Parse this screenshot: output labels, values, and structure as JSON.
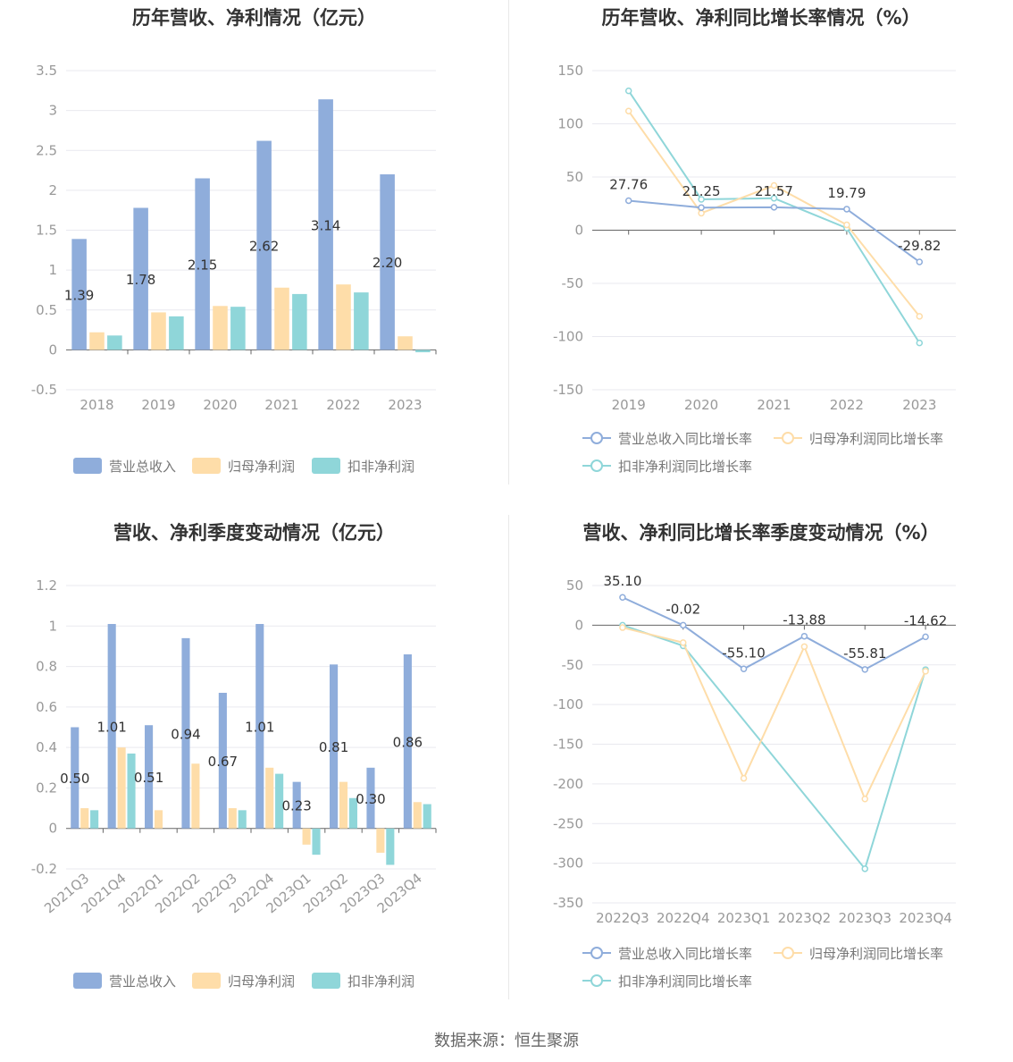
{
  "footer": {
    "source": "数据来源：恒生聚源"
  },
  "colors": {
    "revenue": "#8faddb",
    "parent_profit": "#fedda9",
    "deducted_profit": "#8fd6d9",
    "grid": "#e9e9ef",
    "axis": "#666666"
  },
  "chart_data": [
    {
      "id": "annual_bar",
      "type": "bar",
      "title": "历年营收、净利情况（亿元）",
      "categories": [
        "2018",
        "2019",
        "2020",
        "2021",
        "2022",
        "2023"
      ],
      "series": [
        {
          "name": "营业总收入",
          "color": "#8faddb",
          "values": [
            1.39,
            1.78,
            2.15,
            2.62,
            3.14,
            2.2
          ],
          "labels": [
            "1.39",
            "1.78",
            "2.15",
            "2.62",
            "3.14",
            "2.20"
          ]
        },
        {
          "name": "归母净利润",
          "color": "#fedda9",
          "values": [
            0.22,
            0.47,
            0.55,
            0.78,
            0.82,
            0.17
          ]
        },
        {
          "name": "扣非净利润",
          "color": "#8fd6d9",
          "values": [
            0.18,
            0.42,
            0.54,
            0.7,
            0.72,
            -0.03
          ]
        }
      ],
      "ylim": [
        -0.5,
        3.5
      ],
      "yticks": [
        "-0.5",
        "0",
        "0.5",
        "1",
        "1.5",
        "2",
        "2.5",
        "3",
        "3.5"
      ],
      "legend": "bottom"
    },
    {
      "id": "annual_line",
      "type": "line",
      "title": "历年营收、净利同比增长率情况（%）",
      "categories": [
        "2019",
        "2020",
        "2021",
        "2022",
        "2023"
      ],
      "series": [
        {
          "name": "营业总收入同比增长率",
          "color": "#8faddb",
          "values": [
            27.76,
            21.25,
            21.57,
            19.79,
            -29.82
          ],
          "labels": [
            "27.76",
            "21.25",
            "21.57",
            "19.79",
            "-29.82"
          ]
        },
        {
          "name": "归母净利润同比增长率",
          "color": "#fedda9",
          "values": [
            112,
            16,
            42,
            5,
            -81
          ]
        },
        {
          "name": "扣非净利润同比增长率",
          "color": "#8fd6d9",
          "values": [
            131,
            29,
            30,
            2,
            -106
          ]
        }
      ],
      "ylim": [
        -150,
        150
      ],
      "yticks": [
        "-150",
        "-100",
        "-50",
        "0",
        "50",
        "100",
        "150"
      ],
      "legend": "bottom"
    },
    {
      "id": "quarter_bar",
      "type": "bar",
      "title": "营收、净利季度变动情况（亿元）",
      "categories": [
        "2021Q3",
        "2021Q4",
        "2022Q1",
        "2022Q2",
        "2022Q3",
        "2022Q4",
        "2023Q1",
        "2023Q2",
        "2023Q3",
        "2023Q4"
      ],
      "series": [
        {
          "name": "营业总收入",
          "color": "#8faddb",
          "values": [
            0.5,
            1.01,
            0.51,
            0.94,
            0.67,
            1.01,
            0.23,
            0.81,
            0.3,
            0.86
          ],
          "labels": [
            "0.50",
            "1.01",
            "0.51",
            "0.94",
            "0.67",
            "1.01",
            "0.23",
            "0.81",
            "0.30",
            "0.86"
          ]
        },
        {
          "name": "归母净利润",
          "color": "#fedda9",
          "values": [
            0.1,
            0.4,
            0.09,
            0.32,
            0.1,
            0.3,
            -0.08,
            0.23,
            -0.12,
            0.13
          ]
        },
        {
          "name": "扣非净利润",
          "color": "#8fd6d9",
          "values": [
            0.09,
            0.37,
            0.0,
            0.0,
            0.09,
            0.27,
            -0.13,
            0.15,
            -0.18,
            0.12
          ]
        }
      ],
      "ylim": [
        -0.2,
        1.2
      ],
      "yticks": [
        "-0.2",
        "0",
        "0.2",
        "0.4",
        "0.6",
        "0.8",
        "1",
        "1.2"
      ],
      "legend": "bottom"
    },
    {
      "id": "quarter_line",
      "type": "line",
      "title": "营收、净利同比增长率季度变动情况（%）",
      "categories": [
        "2022Q3",
        "2022Q4",
        "2023Q1",
        "2023Q2",
        "2023Q3",
        "2023Q4"
      ],
      "series": [
        {
          "name": "营业总收入同比增长率",
          "color": "#8faddb",
          "values": [
            35.1,
            -0.02,
            -55.1,
            -13.88,
            -55.81,
            -14.62
          ],
          "labels": [
            "35.10",
            "-0.02",
            "-55.10",
            "-13.88",
            "-55.81",
            "-14.62"
          ]
        },
        {
          "name": "归母净利润同比增长率",
          "color": "#fedda9",
          "values": [
            -3,
            -22,
            -193,
            -27,
            -219,
            -58
          ]
        },
        {
          "name": "扣非净利润同比增长率",
          "color": "#8fd6d9",
          "values": [
            0,
            -26,
            null,
            null,
            -307,
            -56
          ]
        }
      ],
      "ylim": [
        -350,
        50
      ],
      "yticks": [
        "-350",
        "-300",
        "-250",
        "-200",
        "-150",
        "-100",
        "-50",
        "0",
        "50"
      ],
      "legend": "bottom"
    }
  ]
}
